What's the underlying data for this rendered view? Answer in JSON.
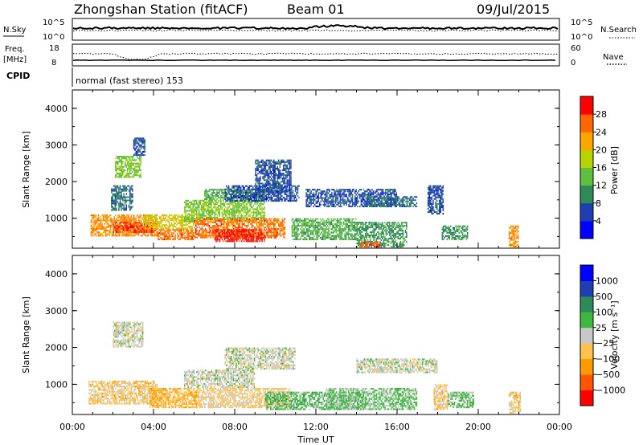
{
  "header": {
    "station": "Zhongshan Station (fitACF)",
    "beam": "Beam 01",
    "date": "09/Jul/2015"
  },
  "status_panels": {
    "nsky": {
      "label": "N.Sky",
      "left_ticks": [
        "10^5",
        "10^0"
      ],
      "right_ticks": [
        "10^5",
        "10^0"
      ],
      "right_label": "N.Search"
    },
    "freq": {
      "label": "Freq.",
      "unit": "[MHz]",
      "left_ticks": [
        "18",
        "8"
      ],
      "right_ticks": [
        "60",
        "0"
      ],
      "right_label": "Nave"
    },
    "cpid": {
      "label": "CPID",
      "text": "normal (fast stereo) 153"
    }
  },
  "colors": {
    "power_scale": [
      "#0000ff",
      "#1f3fb0",
      "#2e8b57",
      "#5fbf3f",
      "#b8d400",
      "#ffa500",
      "#ff6600",
      "#ff0000"
    ],
    "velocity_scale": [
      "#ff0000",
      "#ff5500",
      "#ff9900",
      "#ffc34d",
      "#c8c8c8",
      "#3fb83f",
      "#2e8b57",
      "#1f3fb0",
      "#0000ff"
    ]
  },
  "chart_data": [
    {
      "type": "heatmap",
      "title": "",
      "xlabel": "",
      "ylabel": "Slant Range [km]",
      "xlim": [
        0,
        24
      ],
      "ylim": [
        180,
        4500
      ],
      "x_ticks": [
        "00:00",
        "04:00",
        "08:00",
        "12:00",
        "16:00",
        "20:00",
        "00:00"
      ],
      "y_ticks": [
        "1000",
        "2000",
        "3000",
        "4000"
      ],
      "colorbar": {
        "label": "Power [dB]",
        "ticks": [
          "28",
          "24",
          "20",
          "16",
          "12",
          "8",
          "4"
        ],
        "range": [
          0,
          30
        ]
      },
      "regions": [
        {
          "t0": 0.9,
          "t1": 4.2,
          "r0": 500,
          "r1": 1100,
          "value": 22
        },
        {
          "t0": 2.0,
          "t1": 4.0,
          "r0": 600,
          "r1": 900,
          "value": 26
        },
        {
          "t0": 2.1,
          "t1": 3.4,
          "r0": 2100,
          "r1": 2700,
          "value": 14
        },
        {
          "t0": 1.9,
          "t1": 3.0,
          "r0": 1200,
          "r1": 1900,
          "value": 8
        },
        {
          "t0": 4.2,
          "t1": 6.0,
          "r0": 400,
          "r1": 700,
          "value": 24
        },
        {
          "t0": 3.5,
          "t1": 6.0,
          "r0": 700,
          "r1": 1100,
          "value": 18
        },
        {
          "t0": 5.5,
          "t1": 9.5,
          "r0": 900,
          "r1": 1500,
          "value": 14
        },
        {
          "t0": 6.0,
          "t1": 10.5,
          "r0": 450,
          "r1": 1000,
          "value": 24
        },
        {
          "t0": 7.0,
          "t1": 9.5,
          "r0": 350,
          "r1": 700,
          "value": 28
        },
        {
          "t0": 6.5,
          "t1": 9.5,
          "r0": 1500,
          "r1": 1800,
          "value": 12
        },
        {
          "t0": 7.5,
          "t1": 11.2,
          "r0": 1450,
          "r1": 1900,
          "value": 6
        },
        {
          "t0": 10.8,
          "t1": 14.0,
          "r0": 400,
          "r1": 1000,
          "value": 12
        },
        {
          "t0": 11.5,
          "t1": 16.0,
          "r0": 1300,
          "r1": 1800,
          "value": 6
        },
        {
          "t0": 14.5,
          "t1": 17.0,
          "r0": 1300,
          "r1": 1600,
          "value": 8
        },
        {
          "t0": 14.0,
          "t1": 16.5,
          "r0": 200,
          "r1": 900,
          "value": 10
        },
        {
          "t0": 14.2,
          "t1": 15.2,
          "r0": 200,
          "r1": 350,
          "value": 26
        },
        {
          "t0": 17.5,
          "t1": 18.3,
          "r0": 1100,
          "r1": 1900,
          "value": 6
        },
        {
          "t0": 18.2,
          "t1": 19.5,
          "r0": 400,
          "r1": 800,
          "value": 10
        },
        {
          "t0": 21.5,
          "t1": 22.0,
          "r0": 200,
          "r1": 800,
          "value": 22
        },
        {
          "t0": 9.0,
          "t1": 10.8,
          "r0": 1700,
          "r1": 2600,
          "value": 6
        },
        {
          "t0": 3.0,
          "t1": 3.6,
          "r0": 2700,
          "r1": 3200,
          "value": 6
        }
      ]
    },
    {
      "type": "heatmap",
      "title": "",
      "xlabel": "Time UT",
      "ylabel": "Slant Range [km]",
      "xlim": [
        0,
        24
      ],
      "ylim": [
        180,
        4500
      ],
      "x_ticks": [
        "00:00",
        "04:00",
        "08:00",
        "12:00",
        "16:00",
        "20:00",
        "00:00"
      ],
      "y_ticks": [
        "1000",
        "2000",
        "3000",
        "4000"
      ],
      "colorbar": {
        "label": "Velocity [m s⁻¹]",
        "ticks": [
          "1000",
          "500",
          "100",
          "25",
          "−25",
          "−100",
          "−500",
          "−1000"
        ],
        "range": [
          -1000,
          1000
        ]
      },
      "regions": [
        {
          "t0": 0.8,
          "t1": 4.2,
          "r0": 450,
          "r1": 1100,
          "value": -200
        },
        {
          "t0": 2.0,
          "t1": 3.5,
          "r0": 2000,
          "r1": 2700,
          "value": 0
        },
        {
          "t0": 3.8,
          "t1": 6.2,
          "r0": 350,
          "r1": 900,
          "value": -300
        },
        {
          "t0": 5.5,
          "t1": 9.0,
          "r0": 900,
          "r1": 1400,
          "value": 0
        },
        {
          "t0": 6.2,
          "t1": 10.8,
          "r0": 350,
          "r1": 900,
          "value": -150
        },
        {
          "t0": 7.5,
          "t1": 11.0,
          "r0": 1400,
          "r1": 2000,
          "value": 0
        },
        {
          "t0": 9.5,
          "t1": 14.5,
          "r0": 300,
          "r1": 800,
          "value": 200
        },
        {
          "t0": 12.5,
          "t1": 17.0,
          "r0": 300,
          "r1": 900,
          "value": 150
        },
        {
          "t0": 14.0,
          "t1": 18.0,
          "r0": 1300,
          "r1": 1700,
          "value": 0
        },
        {
          "t0": 17.8,
          "t1": 18.5,
          "r0": 300,
          "r1": 1000,
          "value": -200
        },
        {
          "t0": 18.5,
          "t1": 19.8,
          "r0": 350,
          "r1": 800,
          "value": 150
        },
        {
          "t0": 21.5,
          "t1": 22.1,
          "r0": 200,
          "r1": 800,
          "value": -200
        }
      ]
    }
  ]
}
